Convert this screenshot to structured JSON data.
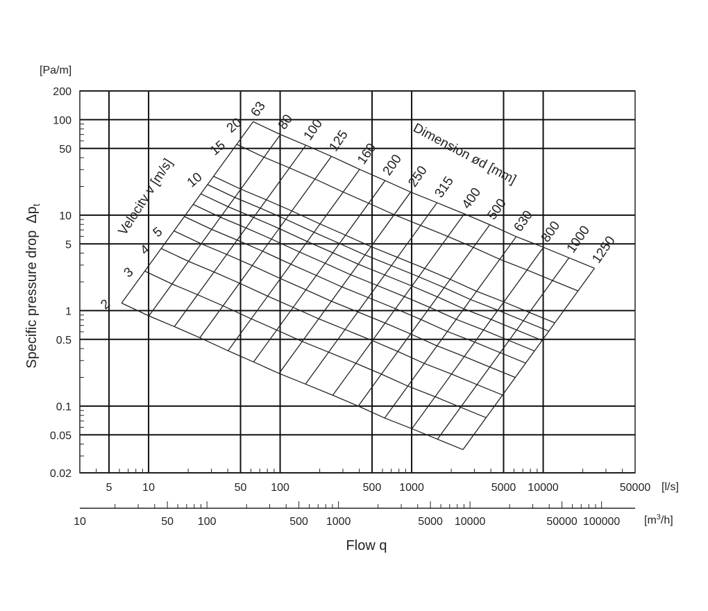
{
  "chart_data": {
    "type": "line",
    "title": "",
    "xlabel": "Flow q",
    "ylabel": "Specific pressure drop",
    "ylabel_symbol": "Δp",
    "ylabel_subscript": "t",
    "y_unit": "[Pa/m]",
    "x_unit": "[l/s]",
    "x2_unit": "[m",
    "x2_unit_sup": "3",
    "x2_unit_tail": "/h]",
    "xscale": "log",
    "yscale": "log",
    "xlim": [
      3,
      50000
    ],
    "ylim": [
      0.02,
      200
    ],
    "grid": true,
    "x_ticks": [
      "5",
      "10",
      "50",
      "100",
      "500",
      "1000",
      "5000",
      "10000",
      "50000"
    ],
    "x_tick_values": [
      5,
      10,
      50,
      100,
      500,
      1000,
      5000,
      10000,
      50000
    ],
    "y_ticks": [
      "0.02",
      "0.05",
      "0.1",
      "0.5",
      "1",
      "5",
      "10",
      "50",
      "100",
      "200"
    ],
    "y_tick_values": [
      0.02,
      0.05,
      0.1,
      0.5,
      1,
      5,
      10,
      50,
      100,
      200
    ],
    "x2_ticks": [
      "10",
      "50",
      "100",
      "500",
      "1000",
      "5000",
      "10000",
      "50000",
      "100000"
    ],
    "x2_tick_values": [
      10,
      50,
      100,
      500,
      1000,
      5000,
      10000,
      50000,
      100000
    ],
    "velocity_title": "Velocity v [m/s]",
    "dimension_title": "Dimension ød [mm]",
    "velocity_labels": [
      "2",
      "3",
      "4",
      "5",
      "10",
      "15",
      "20"
    ],
    "dimension_labels": [
      "63",
      "80",
      "100",
      "125",
      "160",
      "200",
      "250",
      "315",
      "400",
      "500",
      "630",
      "800",
      "1000",
      "1250"
    ],
    "dimensions_mm": [
      63,
      80,
      100,
      125,
      160,
      200,
      250,
      315,
      400,
      500,
      630,
      800,
      1000,
      1250
    ],
    "velocities_ms": [
      2,
      3,
      4,
      5,
      6,
      7,
      8,
      9,
      10,
      15,
      20
    ],
    "pressure_drop_at_2ms": [
      1.2,
      0.88,
      0.68,
      0.52,
      0.38,
      0.29,
      0.22,
      0.17,
      0.13,
      0.1,
      0.075,
      0.058,
      0.045,
      0.035
    ]
  }
}
